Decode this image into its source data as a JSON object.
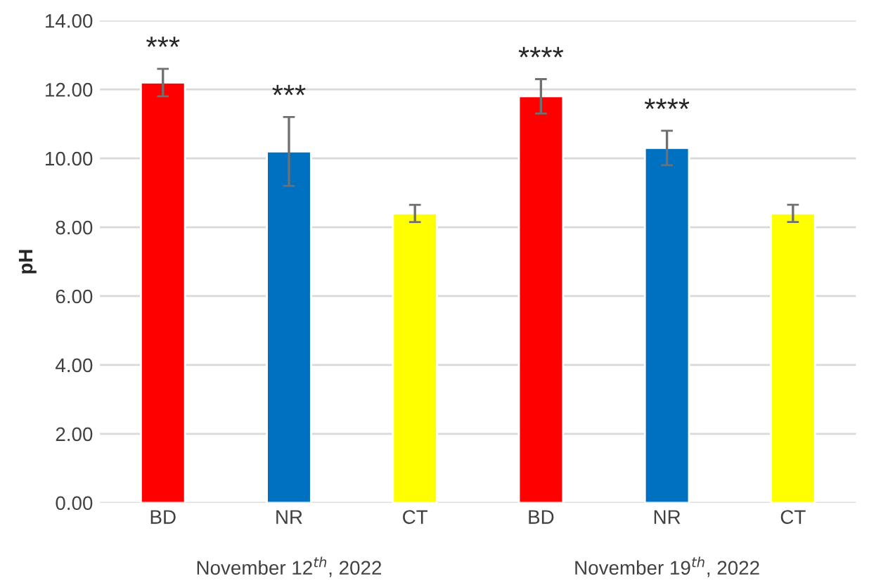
{
  "chart_data": {
    "type": "bar",
    "ylabel": "pH",
    "categories": [
      "BD",
      "NR",
      "CT",
      "BD",
      "NR",
      "CT"
    ],
    "values": [
      12.2,
      10.2,
      8.4,
      11.8,
      10.3,
      8.4
    ],
    "colors": [
      "#ff0000",
      "#0070c0",
      "#ffff00",
      "#ff0000",
      "#0070c0",
      "#ffff00"
    ],
    "errors": [
      0.4,
      1.0,
      0.25,
      0.5,
      0.5,
      0.25
    ],
    "value_labels": [
      "***",
      "***",
      null,
      "****",
      "****",
      null
    ],
    "annotations": [
      "November 12$^{th}$, 2022",
      "November 19$^{th}$, 2022"
    ],
    "ylim": [
      0,
      14
    ],
    "yticks": [
      {
        "value": 0,
        "label": "0.00"
      },
      {
        "value": 2,
        "label": "2.00"
      },
      {
        "value": 4,
        "label": "4.00"
      },
      {
        "value": 6,
        "label": "6.00"
      },
      {
        "value": 8,
        "label": "8.00"
      },
      {
        "value": 10,
        "label": "10.00"
      },
      {
        "value": 12,
        "label": "12.00"
      },
      {
        "value": 14,
        "label": "14.00"
      }
    ],
    "grid": "y"
  }
}
